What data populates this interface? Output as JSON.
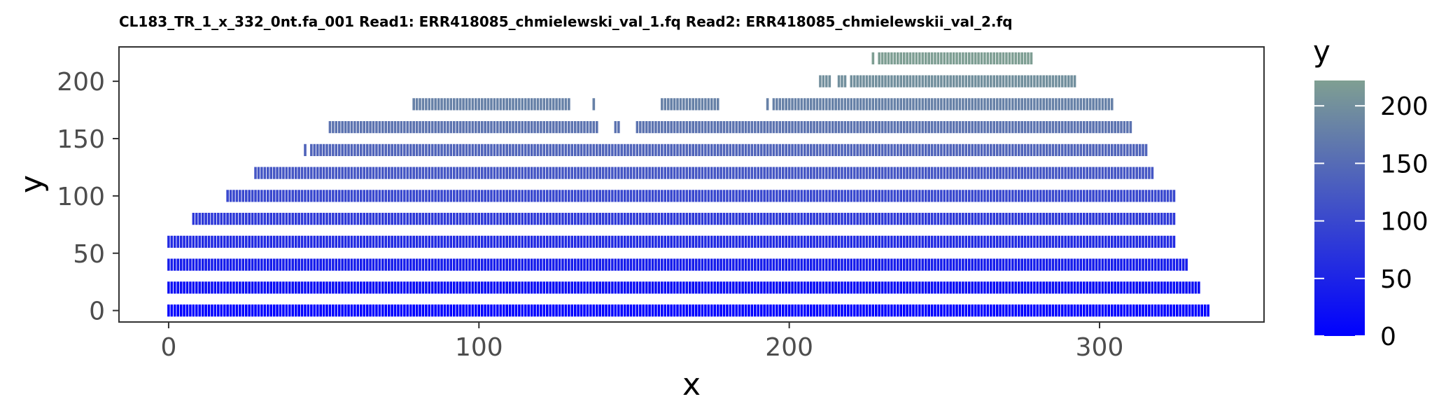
{
  "chart_data": {
    "type": "heatmap",
    "title": "CL183_TR_1_x_332_0nt.fa_001 Read1: ERR418085_chmielewski_val_1.fq Read2: ERR418085_chmielewskii_val_2.fq",
    "xlabel": "x",
    "ylabel": "y",
    "xlim": [
      -16,
      353
    ],
    "ylim": [
      -10,
      230
    ],
    "x_ticks": [
      0,
      100,
      200,
      300
    ],
    "y_ticks": [
      0,
      50,
      100,
      150,
      200
    ],
    "grid": false,
    "legend": {
      "title": "y",
      "position": "right",
      "ticks": [
        0,
        50,
        100,
        150,
        200
      ],
      "range": [
        0,
        222
      ],
      "low_color": "#0000ff",
      "high_color": "#7f9f92"
    },
    "tile_height": 11,
    "rows": [
      {
        "y": 0,
        "segments": [
          [
            0,
            336
          ]
        ]
      },
      {
        "y": 20,
        "segments": [
          [
            0,
            333
          ]
        ]
      },
      {
        "y": 40,
        "segments": [
          [
            0,
            329
          ]
        ]
      },
      {
        "y": 60,
        "segments": [
          [
            0,
            325
          ]
        ]
      },
      {
        "y": 80,
        "segments": [
          [
            8,
            325
          ]
        ]
      },
      {
        "y": 100,
        "segments": [
          [
            19,
            325
          ]
        ]
      },
      {
        "y": 120,
        "segments": [
          [
            28,
            318
          ]
        ]
      },
      {
        "y": 140,
        "segments": [
          [
            44,
            45
          ],
          [
            46,
            316
          ]
        ]
      },
      {
        "y": 160,
        "segments": [
          [
            52,
            139
          ],
          [
            144,
            146
          ],
          [
            151,
            311
          ]
        ]
      },
      {
        "y": 180,
        "segments": [
          [
            79,
            130
          ],
          [
            137,
            138
          ],
          [
            159,
            178
          ],
          [
            193,
            194
          ],
          [
            195,
            305
          ]
        ]
      },
      {
        "y": 200,
        "segments": [
          [
            210,
            214
          ],
          [
            216,
            219
          ],
          [
            220,
            293
          ]
        ]
      },
      {
        "y": 220,
        "segments": [
          [
            227,
            228
          ],
          [
            229,
            279
          ]
        ]
      }
    ]
  }
}
